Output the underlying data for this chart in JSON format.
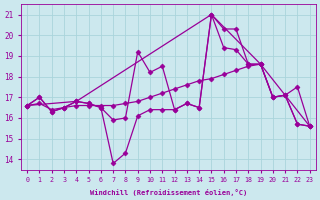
{
  "xlabel": "Windchill (Refroidissement éolien,°C)",
  "background_color": "#cce8ee",
  "grid_color": "#aad4dc",
  "line_color": "#990099",
  "xlim": [
    -0.5,
    23.5
  ],
  "ylim": [
    13.5,
    21.5
  ],
  "yticks": [
    14,
    15,
    16,
    17,
    18,
    19,
    20,
    21
  ],
  "xticks": [
    0,
    1,
    2,
    3,
    4,
    5,
    6,
    7,
    8,
    9,
    10,
    11,
    12,
    13,
    14,
    15,
    16,
    17,
    18,
    19,
    20,
    21,
    22,
    23
  ],
  "lines": [
    {
      "x": [
        0,
        1,
        2,
        3,
        4,
        5,
        6,
        7,
        8,
        9,
        10,
        11,
        12,
        13,
        14,
        15,
        16,
        17,
        18,
        19,
        20,
        21,
        22,
        23
      ],
      "y": [
        16.6,
        17.0,
        16.3,
        16.5,
        16.8,
        16.7,
        16.5,
        13.8,
        14.3,
        16.1,
        16.4,
        16.4,
        16.4,
        16.7,
        16.5,
        21.0,
        19.4,
        19.3,
        18.6,
        18.6,
        17.0,
        17.1,
        15.7,
        15.6
      ]
    },
    {
      "x": [
        0,
        1,
        2,
        3,
        4,
        5,
        6,
        7,
        8,
        9,
        10,
        11,
        12,
        13,
        14,
        15,
        16,
        17,
        18,
        19,
        20,
        21,
        22,
        23
      ],
      "y": [
        16.6,
        17.0,
        16.3,
        16.5,
        16.8,
        16.7,
        16.5,
        15.9,
        16.0,
        19.2,
        18.2,
        18.5,
        16.4,
        16.7,
        16.5,
        21.0,
        20.3,
        20.3,
        18.6,
        18.6,
        17.0,
        17.1,
        17.5,
        15.6
      ]
    },
    {
      "x": [
        0,
        1,
        2,
        3,
        4,
        5,
        6,
        7,
        8,
        9,
        10,
        11,
        12,
        13,
        14,
        15,
        16,
        17,
        18,
        19,
        20,
        21,
        22,
        23
      ],
      "y": [
        16.6,
        16.7,
        16.4,
        16.5,
        16.6,
        16.6,
        16.6,
        16.6,
        16.7,
        16.8,
        17.0,
        17.2,
        17.4,
        17.6,
        17.8,
        17.9,
        18.1,
        18.3,
        18.5,
        18.6,
        17.0,
        17.1,
        15.7,
        15.6
      ]
    },
    {
      "x": [
        0,
        4,
        15,
        19,
        23
      ],
      "y": [
        16.6,
        16.8,
        21.0,
        18.6,
        15.6
      ]
    }
  ],
  "marker": "D",
  "markersize": 2.5,
  "linewidth": 0.9
}
